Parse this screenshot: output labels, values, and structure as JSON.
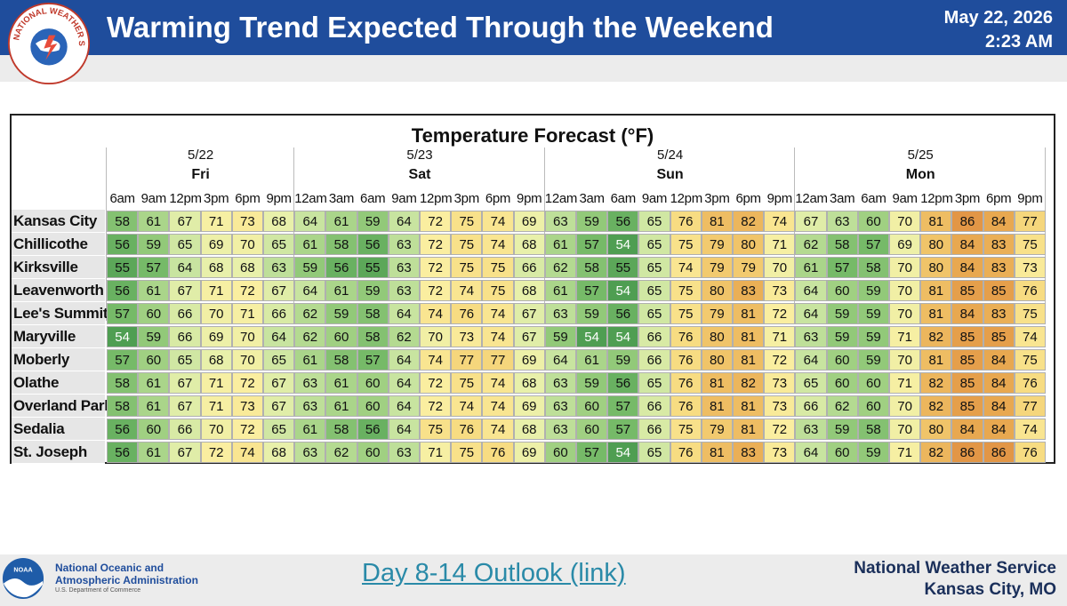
{
  "header": {
    "logo_text": "NATIONAL WEATHER SERVICE",
    "title": "Warming Trend Expected Through the Weekend",
    "date": "May 22, 2026",
    "time": "2:23 AM"
  },
  "table": {
    "title": "Temperature Forecast (°F)",
    "days": [
      {
        "date": "5/22",
        "day": "Fri",
        "times": [
          "6am",
          "9am",
          "12pm",
          "3pm",
          "6pm",
          "9pm"
        ]
      },
      {
        "date": "5/23",
        "day": "Sat",
        "times": [
          "12am",
          "3am",
          "6am",
          "9am",
          "12pm",
          "3pm",
          "6pm",
          "9pm"
        ]
      },
      {
        "date": "5/24",
        "day": "Sun",
        "times": [
          "12am",
          "3am",
          "6am",
          "9am",
          "12pm",
          "3pm",
          "6pm",
          "9pm"
        ]
      },
      {
        "date": "5/25",
        "day": "Mon",
        "times": [
          "12am",
          "3am",
          "6am",
          "9am",
          "12pm",
          "3pm",
          "6pm",
          "9pm"
        ]
      }
    ],
    "rows": [
      {
        "city": "Kansas City",
        "temps": [
          58,
          61,
          67,
          71,
          73,
          68,
          64,
          61,
          59,
          64,
          72,
          75,
          74,
          69,
          63,
          59,
          56,
          65,
          76,
          81,
          82,
          74,
          67,
          63,
          60,
          70,
          81,
          86,
          84,
          77
        ]
      },
      {
        "city": "Chillicothe",
        "temps": [
          56,
          59,
          65,
          69,
          70,
          65,
          61,
          58,
          56,
          63,
          72,
          75,
          74,
          68,
          61,
          57,
          54,
          65,
          75,
          79,
          80,
          71,
          62,
          58,
          57,
          69,
          80,
          84,
          83,
          75
        ]
      },
      {
        "city": "Kirksville",
        "temps": [
          55,
          57,
          64,
          68,
          68,
          63,
          59,
          56,
          55,
          63,
          72,
          75,
          75,
          66,
          62,
          58,
          55,
          65,
          74,
          79,
          79,
          70,
          61,
          57,
          58,
          70,
          80,
          84,
          83,
          73
        ]
      },
      {
        "city": "Leavenworth",
        "temps": [
          56,
          61,
          67,
          71,
          72,
          67,
          64,
          61,
          59,
          63,
          72,
          74,
          75,
          68,
          61,
          57,
          54,
          65,
          75,
          80,
          83,
          73,
          64,
          60,
          59,
          70,
          81,
          85,
          85,
          76
        ]
      },
      {
        "city": "Lee's Summit",
        "temps": [
          57,
          60,
          66,
          70,
          71,
          66,
          62,
          59,
          58,
          64,
          74,
          76,
          74,
          67,
          63,
          59,
          56,
          65,
          75,
          79,
          81,
          72,
          64,
          59,
          59,
          70,
          81,
          84,
          83,
          75
        ]
      },
      {
        "city": "Maryville",
        "temps": [
          54,
          59,
          66,
          69,
          70,
          64,
          62,
          60,
          58,
          62,
          70,
          73,
          74,
          67,
          59,
          54,
          54,
          66,
          76,
          80,
          81,
          71,
          63,
          59,
          59,
          71,
          82,
          85,
          85,
          74
        ]
      },
      {
        "city": "Moberly",
        "temps": [
          57,
          60,
          65,
          68,
          70,
          65,
          61,
          58,
          57,
          64,
          74,
          77,
          77,
          69,
          64,
          61,
          59,
          66,
          76,
          80,
          81,
          72,
          64,
          60,
          59,
          70,
          81,
          85,
          84,
          75
        ]
      },
      {
        "city": "Olathe",
        "temps": [
          58,
          61,
          67,
          71,
          72,
          67,
          63,
          61,
          60,
          64,
          72,
          75,
          74,
          68,
          63,
          59,
          56,
          65,
          76,
          81,
          82,
          73,
          65,
          60,
          60,
          71,
          82,
          85,
          84,
          76
        ]
      },
      {
        "city": "Overland Park",
        "temps": [
          58,
          61,
          67,
          71,
          73,
          67,
          63,
          61,
          60,
          64,
          72,
          74,
          74,
          69,
          63,
          60,
          57,
          66,
          76,
          81,
          81,
          73,
          66,
          62,
          60,
          70,
          82,
          85,
          84,
          77
        ]
      },
      {
        "city": "Sedalia",
        "temps": [
          56,
          60,
          66,
          70,
          72,
          65,
          61,
          58,
          56,
          64,
          75,
          76,
          74,
          68,
          63,
          60,
          57,
          66,
          75,
          79,
          81,
          72,
          63,
          59,
          58,
          70,
          80,
          84,
          84,
          74
        ]
      },
      {
        "city": "St. Joseph",
        "temps": [
          56,
          61,
          67,
          72,
          74,
          68,
          63,
          62,
          60,
          63,
          71,
          75,
          76,
          69,
          60,
          57,
          54,
          65,
          76,
          81,
          83,
          73,
          64,
          60,
          59,
          71,
          82,
          86,
          86,
          76
        ]
      }
    ]
  },
  "footer": {
    "noaa_logo_text": "NOAA",
    "noaa_name_line1": "National Oceanic and",
    "noaa_name_line2": "Atmospheric Administration",
    "noaa_dept": "U.S. Department of Commerce",
    "outlook_link": "Day 8-14 Outlook (link)",
    "nws_line1": "National Weather Service",
    "nws_line2": "Kansas City, MO"
  }
}
